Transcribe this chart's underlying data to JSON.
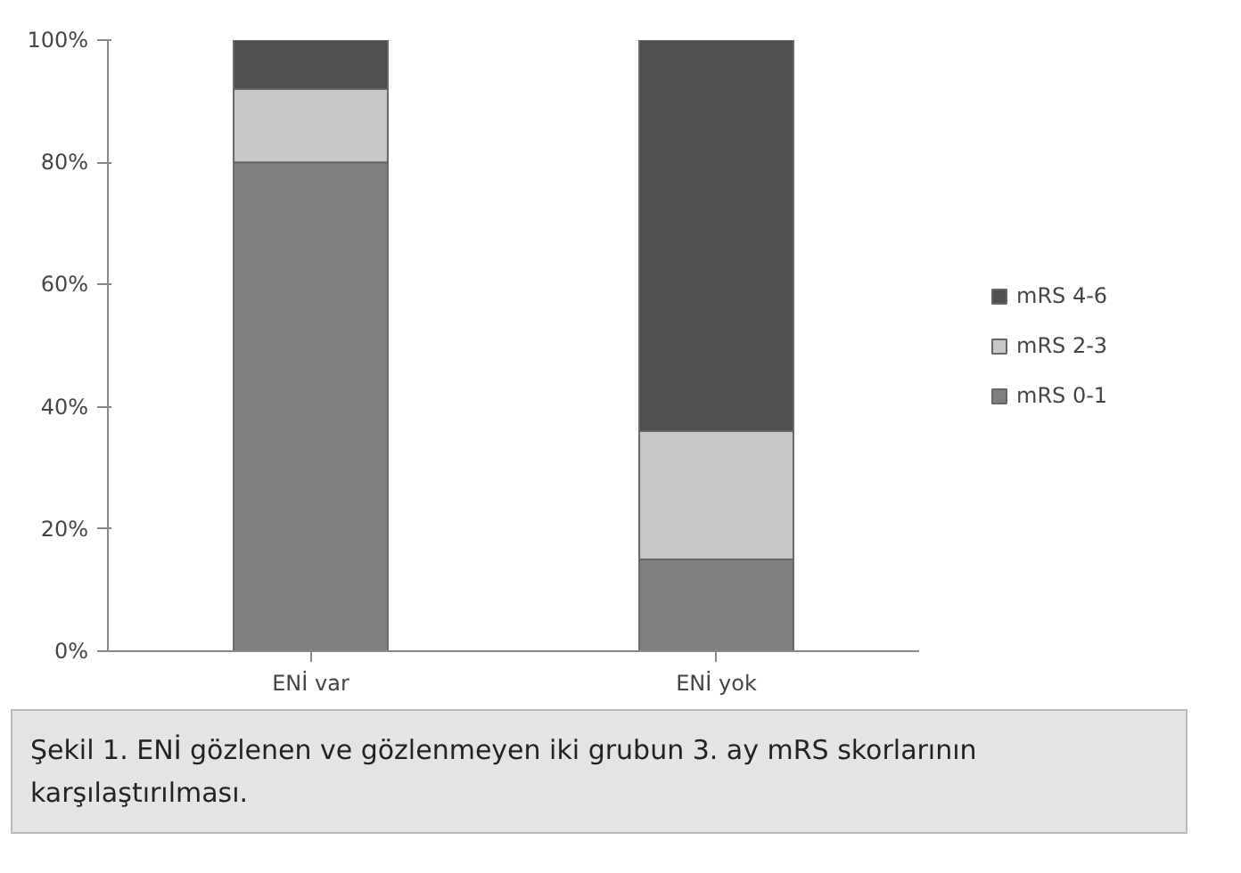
{
  "chart_data": {
    "type": "bar",
    "stacked": true,
    "categories": [
      "ENİ var",
      "ENİ yok"
    ],
    "series": [
      {
        "name": "mRS 0-1",
        "color": "#7f7f7f",
        "values": [
          80,
          15
        ]
      },
      {
        "name": "mRS 2-3",
        "color": "#c8c8c8",
        "values": [
          12,
          21
        ]
      },
      {
        "name": "mRS 4-6",
        "color": "#505050",
        "values": [
          8,
          64
        ]
      }
    ],
    "ylim": [
      0,
      100
    ],
    "yticks": [
      {
        "value": 0,
        "label": "0%"
      },
      {
        "value": 20,
        "label": "20%"
      },
      {
        "value": 40,
        "label": "40%"
      },
      {
        "value": 60,
        "label": "60%"
      },
      {
        "value": 80,
        "label": "80%"
      },
      {
        "value": 100,
        "label": "100%"
      }
    ],
    "grid": false,
    "legend": "right",
    "annotations": [
      "Şekil 1. ENİ gözlenen ve gözlenmeyen iki grubun 3. ay mRS skorlarının karşılaştırılması."
    ]
  }
}
